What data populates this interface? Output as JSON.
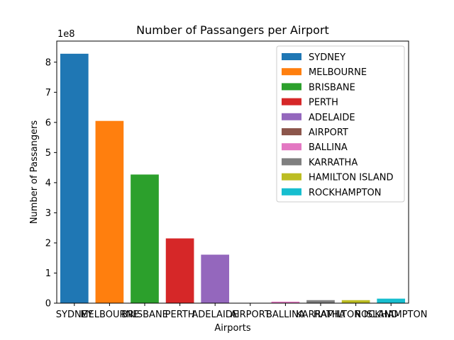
{
  "chart_data": {
    "type": "bar",
    "title": "Number of Passangers per Airport",
    "xlabel": "Airports",
    "ylabel": "Number of Passangers",
    "y_multiplier": "1e8",
    "categories": [
      "SYDNEY",
      "MELBOURNE",
      "BRISBANE",
      "PERTH",
      "ADELAIDE",
      "AIRPORT",
      "BALLINA",
      "KARRATHA",
      "HAMILTON ISLAND",
      "ROCKHAMPTON"
    ],
    "values": [
      8.28,
      6.05,
      4.27,
      2.15,
      1.61,
      0.0,
      0.05,
      0.1,
      0.1,
      0.15
    ],
    "colors": [
      "#1f77b4",
      "#ff7f0e",
      "#2ca02c",
      "#d62728",
      "#9467bd",
      "#8c564b",
      "#e377c2",
      "#7f7f7f",
      "#bcbd22",
      "#17becf"
    ],
    "ylim": [
      0,
      8.7
    ],
    "yticks": [
      0,
      1,
      2,
      3,
      4,
      5,
      6,
      7,
      8
    ],
    "legend_position": "top-right",
    "grid": false
  }
}
